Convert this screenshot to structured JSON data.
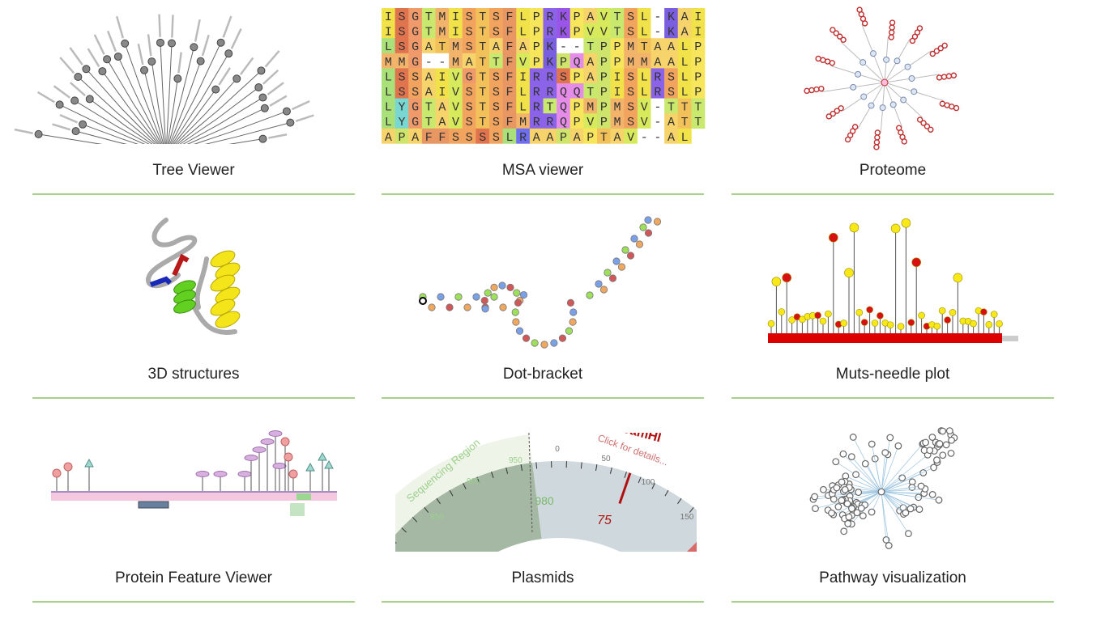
{
  "tiles": [
    {
      "label": "Tree Viewer"
    },
    {
      "label": "MSA viewer"
    },
    {
      "label": "Proteome"
    },
    {
      "label": "3D structures"
    },
    {
      "label": "Dot-bracket"
    },
    {
      "label": "Muts-needle plot"
    },
    {
      "label": "Protein Feature Viewer"
    },
    {
      "label": "Plasmids"
    },
    {
      "label": "Pathway visualization"
    }
  ],
  "msa": {
    "rows": [
      "ISGTMISTSFLPRKPAVTSL-KAI",
      "ISGTMISTSFLPRKPVVTSL-KAI",
      "LSGATMSTAFAPK--TPPMTAALP",
      "MMG--MATTFVPKPQAPPMMAALP",
      "LSSAIVGTSFIRRSPAPISLRSLP",
      "LSSAIVSTSFLRRQQTPISLRSLP",
      "LYGTAVSTSFLRTQPMPMSV-TTT",
      "LYGTAVSTSFMRRQPVPMSV-ATT",
      "APAFFSSSSLRAAPAPTAV--AL"
    ]
  },
  "plasmid": {
    "region": "Sequencing Region",
    "outer_ticks": [
      "950",
      "900",
      "850"
    ],
    "ruler_ticks": [
      "0",
      "50",
      "100",
      "150"
    ],
    "marker": "980",
    "cut_position": "75",
    "enzyme": "BamHI",
    "hint": "Click for details..."
  }
}
